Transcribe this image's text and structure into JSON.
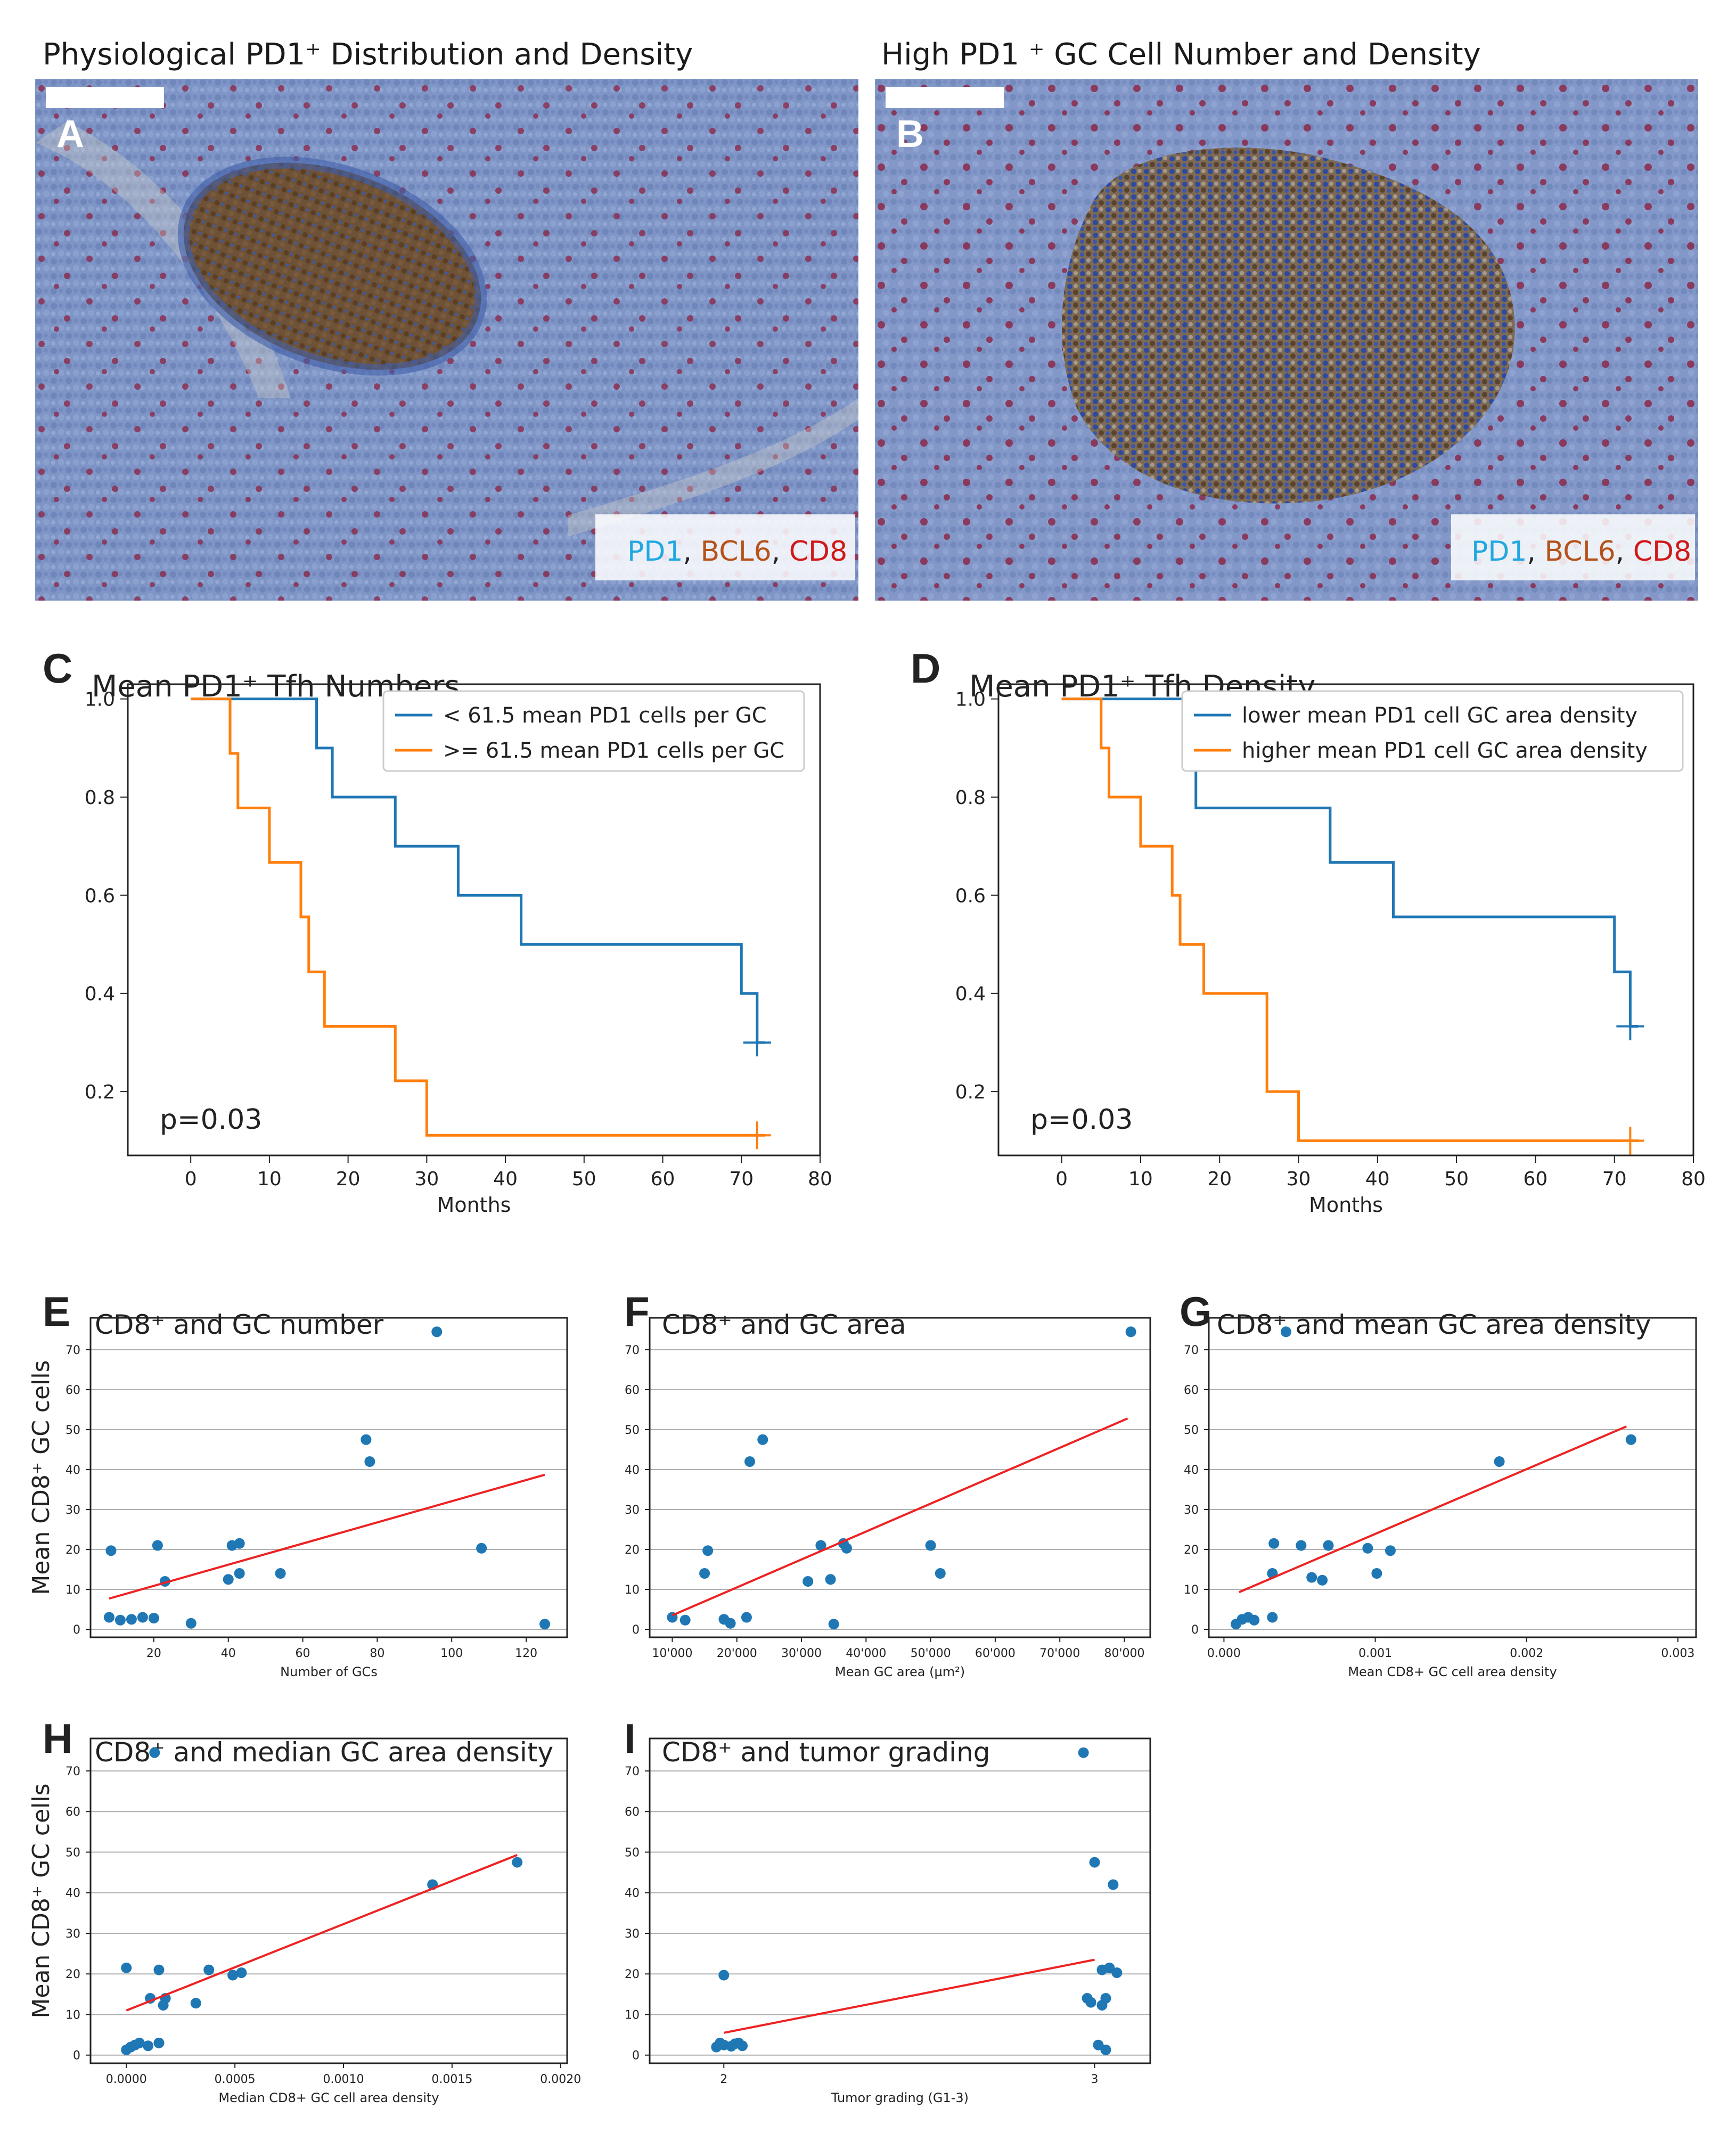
{
  "figure": {
    "microscopy": [
      {
        "letter": "A",
        "title": "Physiological PD1⁺ Distribution and Density",
        "legend": [
          {
            "text": "PD1",
            "color": "#22a8e0"
          },
          {
            "text": ", ",
            "color": "#222222"
          },
          {
            "text": "BCL6",
            "color": "#b5521a"
          },
          {
            "text": ", ",
            "color": "#222222"
          },
          {
            "text": "CD8",
            "color": "#d01818"
          }
        ]
      },
      {
        "letter": "B",
        "title": "High PD1 ⁺ GC Cell Number and Density",
        "legend": [
          {
            "text": "PD1",
            "color": "#22a8e0"
          },
          {
            "text": ", ",
            "color": "#222222"
          },
          {
            "text": "BCL6",
            "color": "#b5521a"
          },
          {
            "text": ", ",
            "color": "#222222"
          },
          {
            "text": "CD8",
            "color": "#d01818"
          }
        ]
      }
    ]
  },
  "chart_data": [
    {
      "id": "C",
      "type": "line",
      "title": "Mean PD1⁺ Tfh Numbers",
      "xlabel": "Months",
      "ylabel": "",
      "xlim": [
        -8,
        80
      ],
      "ylim": [
        0.07,
        1.03
      ],
      "xticks": [
        0,
        10,
        20,
        30,
        40,
        50,
        60,
        70,
        80
      ],
      "yticks": [
        0.2,
        0.4,
        0.6,
        0.8,
        1.0
      ],
      "annotation": "p=0.03",
      "legend_position": "top-right",
      "series": [
        {
          "name": "< 61.5 mean PD1 cells per GC",
          "color": "#1f77b4",
          "steps": [
            [
              0,
              1.0
            ],
            [
              16,
              0.9
            ],
            [
              18,
              0.8
            ],
            [
              26,
              0.7
            ],
            [
              34,
              0.6
            ],
            [
              42,
              0.5
            ],
            [
              70,
              0.4
            ],
            [
              72,
              0.3
            ]
          ],
          "end": 73,
          "censor": [
            72,
            0.3
          ]
        },
        {
          "name": ">= 61.5 mean PD1 cells per GC",
          "color": "#ff7f0e",
          "steps": [
            [
              0,
              1.0
            ],
            [
              5,
              0.889
            ],
            [
              6,
              0.778
            ],
            [
              10,
              0.667
            ],
            [
              14,
              0.556
            ],
            [
              15,
              0.444
            ],
            [
              17,
              0.333
            ],
            [
              26,
              0.222
            ],
            [
              30,
              0.111
            ]
          ],
          "end": 73,
          "censor": [
            72,
            0.111
          ]
        }
      ]
    },
    {
      "id": "D",
      "type": "line",
      "title": "Mean PD1⁺ Tfh Density",
      "xlabel": "Months",
      "ylabel": "",
      "xlim": [
        -8,
        80
      ],
      "ylim": [
        0.07,
        1.03
      ],
      "xticks": [
        0,
        10,
        20,
        30,
        40,
        50,
        60,
        70,
        80
      ],
      "yticks": [
        0.2,
        0.4,
        0.6,
        0.8,
        1.0
      ],
      "annotation": "p=0.03",
      "legend_position": "top-right",
      "series": [
        {
          "name": "lower mean PD1 cell GC area density",
          "color": "#1f77b4",
          "steps": [
            [
              0,
              1.0
            ],
            [
              16,
              0.889
            ],
            [
              17,
              0.778
            ],
            [
              34,
              0.667
            ],
            [
              42,
              0.556
            ],
            [
              70,
              0.444
            ],
            [
              72,
              0.333
            ]
          ],
          "end": 73,
          "censor": [
            72,
            0.333
          ]
        },
        {
          "name": "higher mean PD1 cell GC area density",
          "color": "#ff7f0e",
          "steps": [
            [
              0,
              1.0
            ],
            [
              5,
              0.9
            ],
            [
              6,
              0.8
            ],
            [
              10,
              0.7
            ],
            [
              14,
              0.6
            ],
            [
              15,
              0.5
            ],
            [
              18,
              0.4
            ],
            [
              26,
              0.2
            ],
            [
              30,
              0.1
            ]
          ],
          "end": 73,
          "censor": [
            72,
            0.1
          ]
        }
      ]
    },
    {
      "id": "E",
      "type": "scatter",
      "title": "CD8⁺ and GC number",
      "xlabel": "Number of GCs",
      "ylabel": "Mean CD8⁺ GC cells",
      "xlim": [
        3,
        131
      ],
      "ylim": [
        -2,
        78
      ],
      "xticks": [
        20,
        40,
        60,
        80,
        100,
        120
      ],
      "yticks": [
        0,
        10,
        20,
        30,
        40,
        50,
        60,
        70
      ],
      "grid": "y",
      "points": [
        [
          8,
          3
        ],
        [
          8.5,
          19.7
        ],
        [
          11,
          2.3
        ],
        [
          14,
          2.5
        ],
        [
          17,
          3
        ],
        [
          20,
          2.8
        ],
        [
          21,
          21
        ],
        [
          23,
          12
        ],
        [
          30,
          1.5
        ],
        [
          40,
          12.5
        ],
        [
          41,
          21
        ],
        [
          43,
          21.5
        ],
        [
          43,
          14
        ],
        [
          54,
          14
        ],
        [
          77,
          47.5
        ],
        [
          78,
          42
        ],
        [
          96,
          74.5
        ],
        [
          108,
          20.3
        ],
        [
          125,
          1.3
        ]
      ],
      "fit": [
        [
          8,
          7.7
        ],
        [
          125,
          38.7
        ]
      ]
    },
    {
      "id": "F",
      "type": "scatter",
      "title": "CD8⁺ and GC area",
      "xlabel": "Mean GC area (µm²)",
      "ylabel": "",
      "xlim": [
        6500,
        84000
      ],
      "ylim": [
        -2,
        78
      ],
      "xticks": [
        10000,
        20000,
        30000,
        40000,
        50000,
        60000,
        70000,
        80000
      ],
      "xtick_labels": [
        "10'000",
        "20'000",
        "30'000",
        "40'000",
        "50'000",
        "60'000",
        "70'000",
        "80'000"
      ],
      "yticks": [
        0,
        10,
        20,
        30,
        40,
        50,
        60,
        70
      ],
      "grid": "y",
      "points": [
        [
          10000,
          3
        ],
        [
          12000,
          2.3
        ],
        [
          15000,
          14
        ],
        [
          15500,
          19.7
        ],
        [
          18000,
          2.5
        ],
        [
          19000,
          1.5
        ],
        [
          21500,
          3
        ],
        [
          22000,
          42
        ],
        [
          24000,
          47.5
        ],
        [
          31000,
          12
        ],
        [
          33000,
          21
        ],
        [
          34500,
          12.5
        ],
        [
          35000,
          1.3
        ],
        [
          36500,
          21.5
        ],
        [
          37000,
          20.3
        ],
        [
          50000,
          21
        ],
        [
          51500,
          14
        ],
        [
          81000,
          74.5
        ]
      ],
      "fit": [
        [
          10000,
          3.5
        ],
        [
          80500,
          52.8
        ]
      ]
    },
    {
      "id": "G",
      "type": "scatter",
      "title": "CD8⁺ and mean GC area density",
      "xlabel": "Mean CD8+ GC cell area density",
      "ylabel": "",
      "xlim": [
        -0.0001,
        0.00312
      ],
      "ylim": [
        -2,
        78
      ],
      "xticks": [
        0.0,
        0.001,
        0.002,
        0.003
      ],
      "xtick_labels": [
        "0.000",
        "0.001",
        "0.002",
        "0.003"
      ],
      "yticks": [
        0,
        10,
        20,
        30,
        40,
        50,
        60,
        70
      ],
      "grid": "y",
      "points": [
        [
          8e-05,
          1.3
        ],
        [
          0.00012,
          2.5
        ],
        [
          0.00016,
          3
        ],
        [
          0.0002,
          2.3
        ],
        [
          0.00032,
          3
        ],
        [
          0.00032,
          14
        ],
        [
          0.00033,
          21.5
        ],
        [
          0.00041,
          74.5
        ],
        [
          0.00051,
          21
        ],
        [
          0.00058,
          13
        ],
        [
          0.00065,
          12.3
        ],
        [
          0.00069,
          21
        ],
        [
          0.00095,
          20.3
        ],
        [
          0.00101,
          14
        ],
        [
          0.0011,
          19.7
        ],
        [
          0.00182,
          42
        ],
        [
          0.00269,
          47.5
        ]
      ],
      "fit": [
        [
          0.0001,
          9.3
        ],
        [
          0.00266,
          50.8
        ]
      ]
    },
    {
      "id": "H",
      "type": "scatter",
      "title": "CD8⁺ and median GC area density",
      "xlabel": "Median CD8+ GC cell area density",
      "ylabel": "Mean CD8⁺ GC cells",
      "xlim": [
        -0.000165,
        0.00203
      ],
      "ylim": [
        -2,
        78
      ],
      "xticks": [
        0.0,
        0.0005,
        0.001,
        0.0015,
        0.002
      ],
      "xtick_labels": [
        "0.0000",
        "0.0005",
        "0.0010",
        "0.0015",
        "0.0020"
      ],
      "yticks": [
        0,
        10,
        20,
        30,
        40,
        50,
        60,
        70
      ],
      "grid": "y",
      "points": [
        [
          0.0,
          1.3
        ],
        [
          2e-05,
          2
        ],
        [
          4e-05,
          2.5
        ],
        [
          6e-05,
          3
        ],
        [
          0.0001,
          2.3
        ],
        [
          0.00015,
          3
        ],
        [
          0.0,
          21.5
        ],
        [
          0.00011,
          14
        ],
        [
          0.00013,
          74.5
        ],
        [
          0.00015,
          21
        ],
        [
          0.00017,
          12.3
        ],
        [
          0.00018,
          14
        ],
        [
          0.00032,
          12.8
        ],
        [
          0.00038,
          21
        ],
        [
          0.00049,
          19.7
        ],
        [
          0.00053,
          20.3
        ],
        [
          0.00141,
          42
        ],
        [
          0.0018,
          47.5
        ]
      ],
      "fit": [
        [
          0.0,
          11
        ],
        [
          0.0018,
          49.3
        ]
      ]
    },
    {
      "id": "I",
      "type": "scatter",
      "title": "CD8⁺ and tumor grading",
      "xlabel": "Tumor grading (G1-3)",
      "ylabel": "",
      "xlim": [
        1.8,
        3.15
      ],
      "ylim": [
        -2,
        78
      ],
      "xticks": [
        2,
        3
      ],
      "xtick_labels": [
        "2",
        "3"
      ],
      "yticks": [
        0,
        10,
        20,
        30,
        40,
        50,
        60,
        70
      ],
      "grid": "y",
      "points": [
        [
          1.98,
          2
        ],
        [
          1.99,
          3
        ],
        [
          2.0,
          2.5
        ],
        [
          2.0,
          19.7
        ],
        [
          2.02,
          2.2
        ],
        [
          2.03,
          2.8
        ],
        [
          2.04,
          3
        ],
        [
          2.05,
          2.3
        ],
        [
          2.97,
          74.5
        ],
        [
          2.98,
          14
        ],
        [
          2.99,
          13
        ],
        [
          3.0,
          47.5
        ],
        [
          3.01,
          2.5
        ],
        [
          3.02,
          21
        ],
        [
          3.02,
          12.3
        ],
        [
          3.03,
          14
        ],
        [
          3.03,
          1.3
        ],
        [
          3.04,
          21.5
        ],
        [
          3.05,
          42
        ],
        [
          3.06,
          20.3
        ]
      ],
      "fit": [
        [
          2.0,
          5.5
        ],
        [
          3.0,
          23.5
        ]
      ]
    }
  ]
}
